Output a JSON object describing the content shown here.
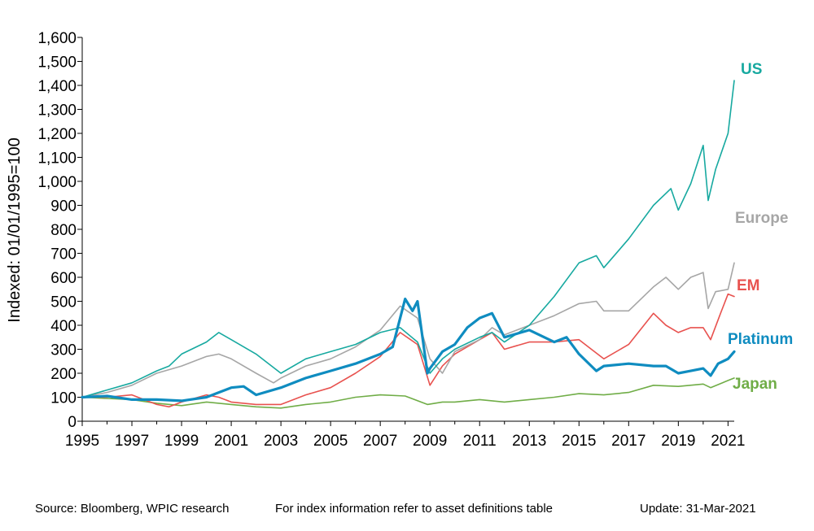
{
  "chart_data": {
    "type": "line",
    "ylabel": "Indexed: 01/01/1995=100",
    "xlabel": "",
    "ylim": [
      0,
      1600
    ],
    "xlim": [
      "1995-01-01",
      "2021-04-01"
    ],
    "grid": false,
    "yticks": [
      0,
      100,
      200,
      300,
      400,
      500,
      600,
      700,
      800,
      900,
      1000,
      1100,
      1200,
      1300,
      1400,
      1500,
      1600
    ],
    "ytick_labels": [
      "0",
      "100",
      "200",
      "300",
      "400",
      "500",
      "600",
      "700",
      "800",
      "900",
      "1,000",
      "1,100",
      "1,200",
      "1,300",
      "1,400",
      "1,500",
      "1,600"
    ],
    "xticks": [
      1995,
      1997,
      1999,
      2001,
      2003,
      2005,
      2007,
      2009,
      2011,
      2013,
      2015,
      2017,
      2019,
      2021
    ],
    "xtick_labels": [
      "1995",
      "1997",
      "1999",
      "2001",
      "2003",
      "2005",
      "2007",
      "2009",
      "2011",
      "2013",
      "2015",
      "2017",
      "2019",
      "2021"
    ],
    "series": [
      {
        "name": "US",
        "color": "#17a9a0",
        "width": 1.6,
        "x": [
          1995,
          1996,
          1997,
          1998,
          1998.5,
          1999,
          2000,
          2000.5,
          2001,
          2002,
          2002.5,
          2003,
          2004,
          2005,
          2006,
          2007,
          2007.8,
          2008.5,
          2009,
          2009.5,
          2010,
          2011,
          2011.5,
          2012,
          2013,
          2014,
          2015,
          2015.7,
          2016,
          2017,
          2018,
          2018.7,
          2019,
          2019.5,
          2020,
          2020.2,
          2020.5,
          2021,
          2021.25
        ],
        "y": [
          100,
          130,
          160,
          210,
          230,
          280,
          330,
          370,
          340,
          280,
          240,
          200,
          260,
          290,
          320,
          370,
          390,
          330,
          200,
          260,
          300,
          350,
          370,
          330,
          400,
          520,
          660,
          690,
          640,
          760,
          900,
          970,
          880,
          990,
          1150,
          920,
          1050,
          1200,
          1420
        ]
      },
      {
        "name": "Europe",
        "color": "#a6a6a6",
        "width": 1.6,
        "x": [
          1995,
          1996,
          1997,
          1998,
          1999,
          2000,
          2000.5,
          2001,
          2002,
          2002.7,
          2003,
          2004,
          2005,
          2006,
          2007,
          2007.8,
          2008.5,
          2009,
          2009.5,
          2010,
          2011,
          2011.5,
          2012,
          2013,
          2014,
          2015,
          2015.7,
          2016,
          2017,
          2018,
          2018.5,
          2019,
          2019.5,
          2020,
          2020.2,
          2020.5,
          2021,
          2021.25
        ],
        "y": [
          100,
          120,
          150,
          200,
          230,
          270,
          280,
          260,
          200,
          160,
          180,
          230,
          260,
          310,
          380,
          480,
          430,
          260,
          200,
          290,
          340,
          390,
          360,
          400,
          440,
          490,
          500,
          460,
          460,
          560,
          600,
          550,
          600,
          620,
          470,
          540,
          550,
          660
        ]
      },
      {
        "name": "EM",
        "color": "#e8524f",
        "width": 1.6,
        "x": [
          1995,
          1996,
          1997,
          1998,
          1998.5,
          1999,
          2000,
          2000.5,
          2001,
          2002,
          2003,
          2004,
          2005,
          2006,
          2007,
          2007.8,
          2008.5,
          2009,
          2009.5,
          2010,
          2011,
          2011.5,
          2012,
          2013,
          2014,
          2015,
          2015.5,
          2016,
          2017,
          2018,
          2018.5,
          2019,
          2019.5,
          2020,
          2020.3,
          2020.7,
          2021,
          2021.25
        ],
        "y": [
          100,
          100,
          110,
          70,
          60,
          80,
          110,
          100,
          80,
          70,
          70,
          110,
          140,
          200,
          270,
          370,
          320,
          150,
          230,
          280,
          340,
          370,
          300,
          330,
          330,
          340,
          300,
          260,
          320,
          450,
          400,
          370,
          390,
          390,
          340,
          450,
          530,
          520
        ]
      },
      {
        "name": "Platinum",
        "color": "#0f8cc0",
        "width": 3.2,
        "x": [
          1995,
          1996,
          1997,
          1998,
          1999,
          2000,
          2000.5,
          2001,
          2001.5,
          2002,
          2003,
          2004,
          2005,
          2006,
          2007,
          2007.5,
          2008,
          2008.3,
          2008.5,
          2008.9,
          2009,
          2009.5,
          2010,
          2010.5,
          2011,
          2011.5,
          2012,
          2013,
          2014,
          2014.5,
          2015,
          2015.7,
          2016,
          2017,
          2018,
          2018.5,
          2019,
          2019.5,
          2020,
          2020.3,
          2020.6,
          2021,
          2021.25
        ],
        "y": [
          100,
          105,
          90,
          90,
          85,
          100,
          120,
          140,
          145,
          110,
          140,
          180,
          210,
          240,
          280,
          310,
          510,
          460,
          500,
          200,
          220,
          290,
          320,
          390,
          430,
          450,
          350,
          380,
          330,
          350,
          280,
          210,
          230,
          240,
          230,
          230,
          200,
          210,
          220,
          190,
          240,
          260,
          290
        ]
      },
      {
        "name": "Japan",
        "color": "#70ad47",
        "width": 1.6,
        "x": [
          1995,
          1996,
          1997,
          1998,
          1999,
          2000,
          2001,
          2002,
          2003,
          2004,
          2005,
          2006,
          2007,
          2008,
          2008.9,
          2009.5,
          2010,
          2011,
          2012,
          2013,
          2014,
          2015,
          2016,
          2017,
          2018,
          2019,
          2020,
          2020.3,
          2021,
          2021.25
        ],
        "y": [
          100,
          95,
          90,
          75,
          65,
          80,
          70,
          60,
          55,
          70,
          80,
          100,
          110,
          105,
          70,
          80,
          80,
          90,
          80,
          90,
          100,
          115,
          110,
          120,
          150,
          145,
          155,
          140,
          170,
          180
        ]
      }
    ],
    "labels": [
      {
        "series": "US",
        "text": "US"
      },
      {
        "series": "Europe",
        "text": "Europe"
      },
      {
        "series": "EM",
        "text": "EM"
      },
      {
        "series": "Platinum",
        "text": "Platinum"
      },
      {
        "series": "Japan",
        "text": "Japan"
      }
    ]
  },
  "footer": {
    "source": "Source: Bloomberg, WPIC research",
    "note": "For index information refer to asset definitions table",
    "update": "Update: 31-Mar-2021"
  }
}
